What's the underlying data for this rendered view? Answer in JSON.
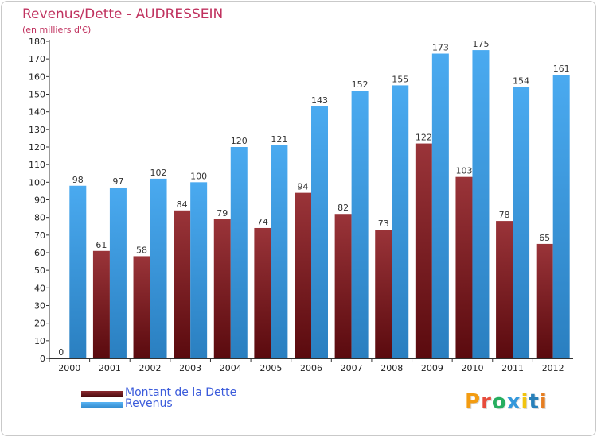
{
  "title": "Revenus/Dette - AUDRESSEIN",
  "subtitle": "(en milliers d'€)",
  "legend": {
    "debt_label": "Montant de la Dette",
    "revenue_label": "Revenus"
  },
  "brand": "Proxiti",
  "colors": {
    "debt": "#7a1f24",
    "revenue": "#3d9be0",
    "title": "#c0325f",
    "legend_text": "#3b5bdb"
  },
  "chart_data": {
    "type": "bar",
    "title": "Revenus/Dette - AUDRESSEIN",
    "subtitle": "(en milliers d'€)",
    "categories": [
      "2000",
      "2001",
      "2002",
      "2003",
      "2004",
      "2005",
      "2006",
      "2007",
      "2008",
      "2009",
      "2010",
      "2011",
      "2012"
    ],
    "series": [
      {
        "name": "Montant de la Dette",
        "values": [
          0,
          61,
          58,
          84,
          79,
          74,
          94,
          82,
          73,
          122,
          103,
          78,
          65
        ]
      },
      {
        "name": "Revenus",
        "values": [
          98,
          97,
          102,
          100,
          120,
          121,
          143,
          152,
          155,
          173,
          175,
          154,
          161
        ]
      }
    ],
    "ylim": [
      0,
      180
    ],
    "yticks": [
      0,
      10,
      20,
      30,
      40,
      50,
      60,
      70,
      80,
      90,
      100,
      110,
      120,
      130,
      140,
      150,
      160,
      170,
      180
    ],
    "grid": false,
    "legend_position": "bottom-left"
  }
}
